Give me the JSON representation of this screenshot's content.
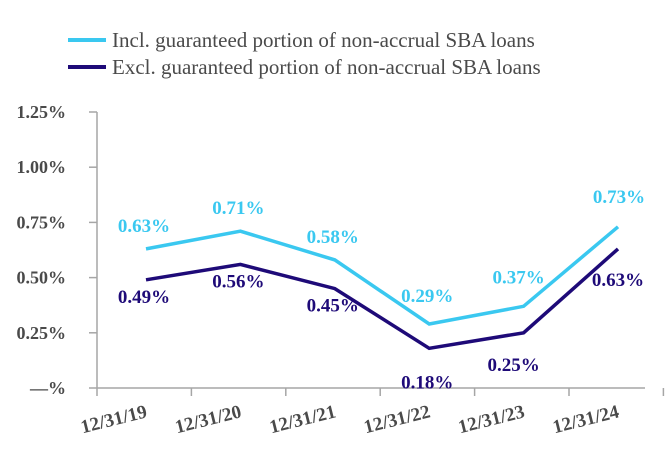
{
  "chart_data": {
    "type": "line",
    "title": "",
    "xlabel": "",
    "ylabel": "",
    "categories": [
      "12/31/19",
      "12/31/20",
      "12/31/21",
      "12/31/22",
      "12/31/23",
      "12/31/24"
    ],
    "ylim": [
      0,
      1.25
    ],
    "yticks": [
      0,
      0.25,
      0.5,
      0.75,
      1.0,
      1.25
    ],
    "ytick_labels": [
      "—%",
      "0.25%",
      "0.50%",
      "0.75%",
      "1.00%",
      "1.25%"
    ],
    "grid": false,
    "legend_position": "top",
    "series": [
      {
        "name": "Incl. guaranteed portion of non-accrual SBA loans",
        "color": "#3ac8f0",
        "values": [
          0.63,
          0.71,
          0.58,
          0.29,
          0.37,
          0.73
        ],
        "labels": [
          "0.63%",
          "0.71%",
          "0.58%",
          "0.29%",
          "0.37%",
          "0.73%"
        ]
      },
      {
        "name": "Excl. guaranteed portion of non-accrual SBA loans",
        "color": "#1e0a78",
        "values": [
          0.49,
          0.56,
          0.45,
          0.18,
          0.25,
          0.63
        ],
        "labels": [
          "0.49%",
          "0.56%",
          "0.45%",
          "0.18%",
          "0.25%",
          "0.63%"
        ]
      }
    ]
  },
  "colors": {
    "axis": "#a6a6a6",
    "text": "#4a4a4a"
  }
}
